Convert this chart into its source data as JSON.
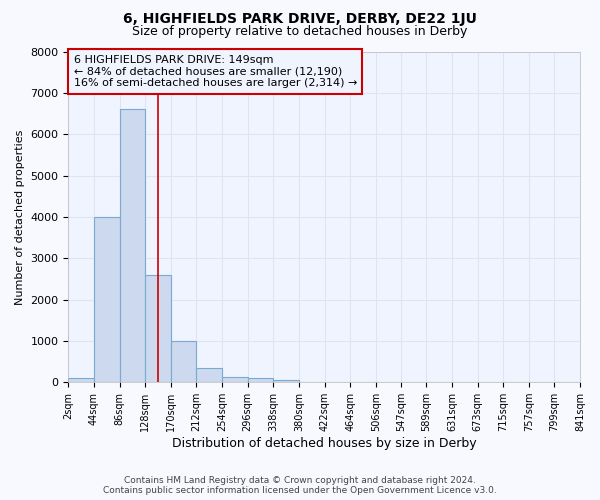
{
  "title": "6, HIGHFIELDS PARK DRIVE, DERBY, DE22 1JU",
  "subtitle": "Size of property relative to detached houses in Derby",
  "xlabel": "Distribution of detached houses by size in Derby",
  "ylabel": "Number of detached properties",
  "footer_line1": "Contains HM Land Registry data © Crown copyright and database right 2024.",
  "footer_line2": "Contains public sector information licensed under the Open Government Licence v3.0.",
  "annotation_line1": "6 HIGHFIELDS PARK DRIVE: 149sqm",
  "annotation_line2": "← 84% of detached houses are smaller (12,190)",
  "annotation_line3": "16% of semi-detached houses are larger (2,314) →",
  "bar_edges": [
    2,
    44,
    86,
    128,
    170,
    212,
    254,
    296,
    338,
    380,
    422,
    464,
    506,
    547,
    589,
    631,
    673,
    715,
    757,
    799,
    841
  ],
  "bar_heights": [
    100,
    4000,
    6600,
    2600,
    1000,
    350,
    120,
    100,
    50,
    0,
    0,
    0,
    0,
    0,
    0,
    0,
    0,
    0,
    0,
    0
  ],
  "bar_color": "#ccd9ee",
  "bar_edge_color": "#7aaad0",
  "red_line_x": 149,
  "annotation_box_color": "#cc0000",
  "fig_bg_color": "#f7f9ff",
  "ax_bg_color": "#f0f4ff",
  "grid_color": "#dde5f5",
  "ylim": [
    0,
    8000
  ],
  "yticks": [
    0,
    1000,
    2000,
    3000,
    4000,
    5000,
    6000,
    7000,
    8000
  ],
  "title_fontsize": 10,
  "subtitle_fontsize": 9,
  "ylabel_fontsize": 8,
  "xlabel_fontsize": 9,
  "tick_fontsize": 8,
  "annot_fontsize": 8
}
